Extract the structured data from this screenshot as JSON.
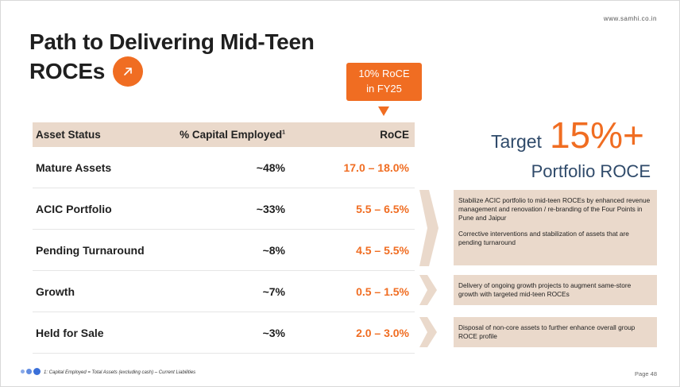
{
  "header": {
    "url": "www.samhi.co.in",
    "title_line1": "Path to Delivering Mid-Teen",
    "title_line2": "ROCEs"
  },
  "callout": {
    "line1": "10% RoCE",
    "line2": "in FY25"
  },
  "table": {
    "headers": {
      "asset_status": "Asset Status",
      "capital_employed": "% Capital Employed",
      "capital_employed_note": "1",
      "roce": "RoCE"
    },
    "rows": [
      {
        "asset": "Mature Assets",
        "capital": "~48%",
        "roce": "17.0 – 18.0%"
      },
      {
        "asset": "ACIC Portfolio",
        "capital": "~33%",
        "roce": "5.5 – 6.5%"
      },
      {
        "asset": "Pending Turnaround",
        "capital": "~8%",
        "roce": "4.5 – 5.5%"
      },
      {
        "asset": "Growth",
        "capital": "~7%",
        "roce": "0.5 – 1.5%"
      },
      {
        "asset": "Held for Sale",
        "capital": "~3%",
        "roce": "2.0 – 3.0%"
      }
    ]
  },
  "target": {
    "label": "Target",
    "value": "15%+",
    "subtitle": "Portfolio ROCE"
  },
  "notes": {
    "acic_and_turnaround_p1": "Stabilize ACIC portfolio to mid-teen ROCEs by enhanced revenue management and renovation / re-branding of the Four Points in Pune and Jaipur",
    "acic_and_turnaround_p2": "Corrective interventions and stabilization of assets that are pending turnaround",
    "growth": "Delivery of ongoing growth projects to augment same-store growth with targeted mid-teen ROCEs",
    "held_for_sale": "Disposal of non-core assets to further enhance overall group ROCE profile"
  },
  "footer": {
    "footnote": "1: Capital Employed = Total Assets (excluding cash) – Current Liabilities",
    "page": "Page 48"
  },
  "colors": {
    "accent": "#f06d22",
    "band": "#ead9cb",
    "navy": "#2f4a6a",
    "dot": "#3a6fd8"
  }
}
